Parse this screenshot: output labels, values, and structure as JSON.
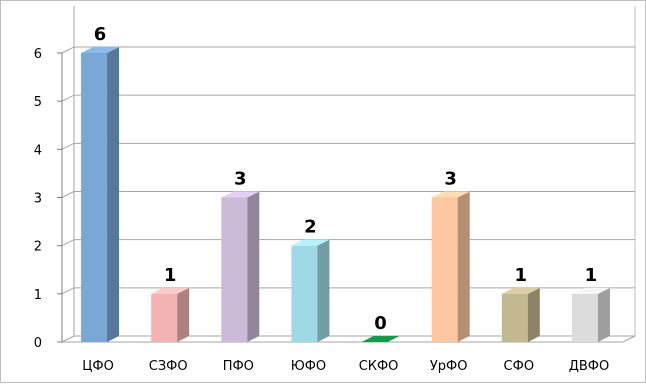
{
  "chart_data": {
    "type": "bar",
    "categories": [
      "ЦФО",
      "СЗФО",
      "ПФО",
      "ЮФО",
      "СКФО",
      "УрФО",
      "СФО",
      "ДВФО"
    ],
    "values": [
      6,
      1,
      3,
      2,
      0,
      3,
      1,
      1
    ],
    "data_labels": [
      "6",
      "1",
      "3",
      "2",
      "0",
      "3",
      "1",
      "1"
    ],
    "bar_colors": [
      "#7aa7d6",
      "#f2b3b3",
      "#ccbad9",
      "#9fd9e6",
      "#109c48",
      "#fbc6a0",
      "#c4b890",
      "#dcdcdc"
    ],
    "ylim": [
      0,
      6
    ],
    "yticks": [
      "0",
      "1",
      "2",
      "3",
      "4",
      "5",
      "6"
    ],
    "grid": true,
    "style": "3d-column",
    "legend": "none"
  }
}
